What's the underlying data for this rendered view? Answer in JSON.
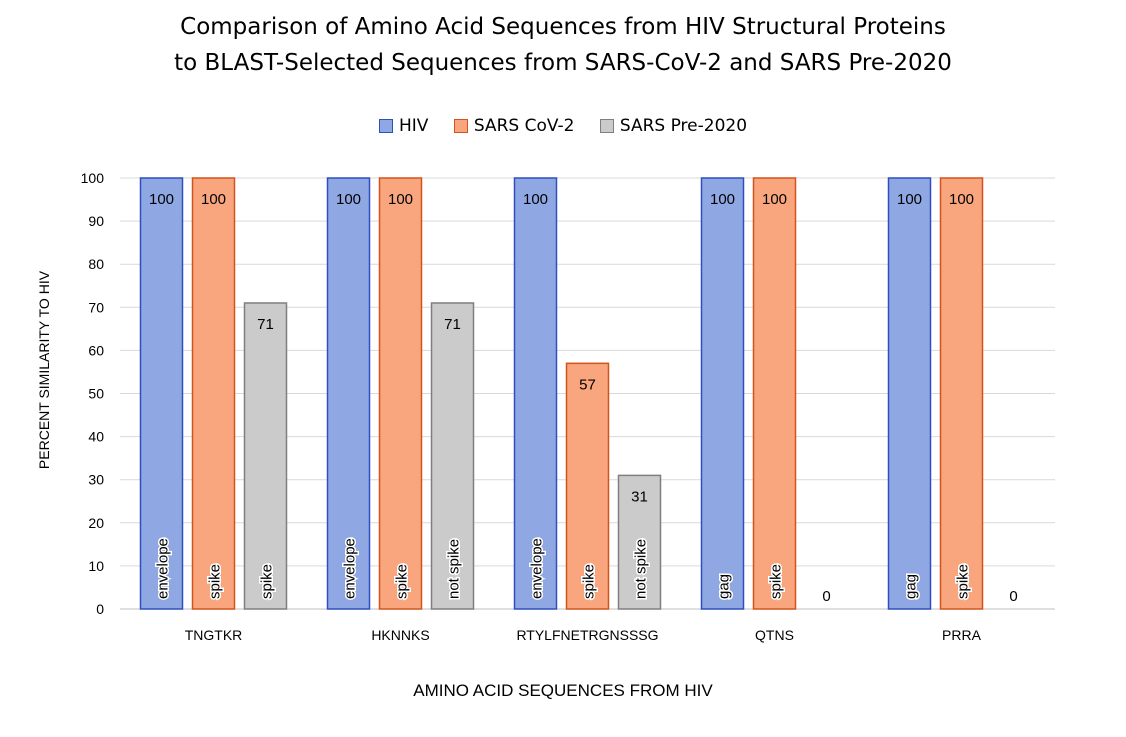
{
  "chart_data": {
    "type": "bar",
    "title": "Comparison  of Amino Acid Sequences  from HIV Structural Proteins",
    "subtitle": "to BLAST-Selected  Sequences  from SARS-CoV-2  and SARS Pre-2020",
    "xlabel": "AMINO ACID SEQUENCES  FROM HIV",
    "ylabel": "PERCENT SIMILARITY TO HIV",
    "ylim": [
      0,
      100
    ],
    "yticks": [
      0,
      10,
      20,
      30,
      40,
      50,
      60,
      70,
      80,
      90,
      100
    ],
    "grid": true,
    "legend_position": "top",
    "categories": [
      "TNGTKR",
      "HKNNKS",
      "RTYLFNETRGNSSSG",
      "QTNS",
      "PRRA"
    ],
    "series": [
      {
        "name": "HIV",
        "color": "#8fa8e4",
        "border": "#2f4fbf",
        "values": [
          100,
          100,
          100,
          100,
          100
        ],
        "annotations": [
          "envelope",
          "envelope",
          "envelope",
          "gag",
          "gag"
        ]
      },
      {
        "name": "SARS CoV-2",
        "color": "#f9a57d",
        "border": "#d2541c",
        "values": [
          100,
          100,
          57,
          100,
          100
        ],
        "annotations": [
          "spike",
          "spike",
          "spike",
          "spike",
          "spike"
        ]
      },
      {
        "name": "SARS Pre-2020",
        "color": "#cbcbcb",
        "border": "#7f7f7f",
        "values": [
          71,
          71,
          31,
          0,
          0
        ],
        "annotations": [
          "spike",
          "not  spike",
          "not  spike",
          "",
          ""
        ]
      }
    ]
  }
}
